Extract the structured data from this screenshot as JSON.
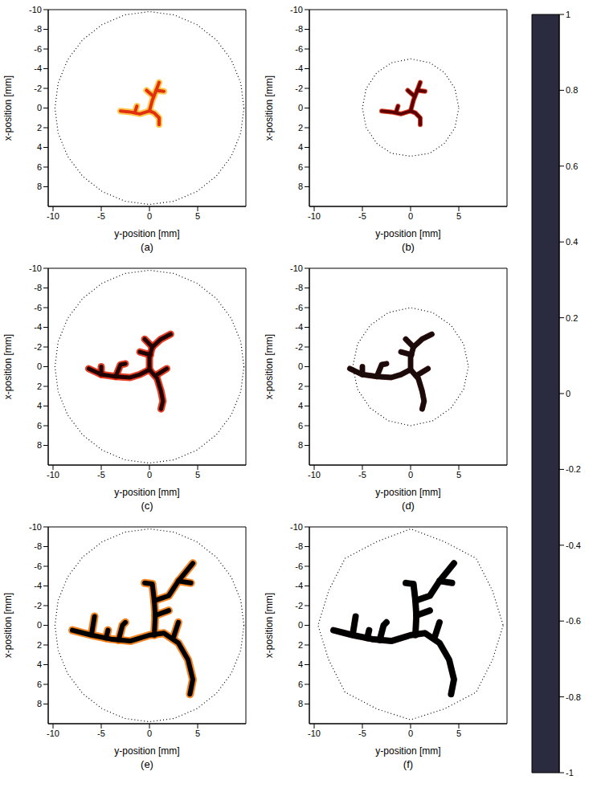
{
  "chart_data": [
    {
      "type": "line",
      "label": "(a)",
      "x_label": "y-position [mm]",
      "y_label": "x-position [mm]",
      "xlim": [
        -10.5,
        10
      ],
      "xticks": [
        -10,
        -5,
        0,
        5
      ],
      "ylim": [
        -10,
        10
      ],
      "yticks": [
        -10,
        -8,
        -6,
        -4,
        -2,
        0,
        2,
        4,
        6,
        8
      ],
      "color": "#e03010",
      "vessels": [
        [
          [
            -3,
            0.3
          ],
          [
            -2,
            0.4
          ],
          [
            -1,
            0.6
          ],
          [
            0,
            0.3
          ],
          [
            0.5,
            0.5
          ],
          [
            1,
            1
          ],
          [
            1,
            1.7
          ]
        ],
        [
          [
            0,
            0.3
          ],
          [
            0.3,
            -0.8
          ],
          [
            0.7,
            -1.8
          ],
          [
            1,
            -2.6
          ]
        ],
        [
          [
            0.4,
            -1.2
          ],
          [
            -0.3,
            -1.8
          ]
        ],
        [
          [
            0.7,
            -1.8
          ],
          [
            1.5,
            -1.7
          ]
        ],
        [
          [
            -1.5,
            0.4
          ],
          [
            -1.3,
            -0.2
          ]
        ]
      ],
      "boundary": [
        [
          9.8,
          0
        ],
        [
          9.47,
          2.54
        ],
        [
          8.49,
          4.9
        ],
        [
          6.93,
          6.93
        ],
        [
          4.9,
          8.49
        ],
        [
          2.54,
          9.47
        ],
        [
          0,
          9.8
        ],
        [
          -2.54,
          9.47
        ],
        [
          -4.9,
          8.49
        ],
        [
          -6.93,
          6.93
        ],
        [
          -8.49,
          4.9
        ],
        [
          -9.47,
          2.54
        ],
        [
          -9.8,
          0
        ],
        [
          -9.47,
          -2.54
        ],
        [
          -8.49,
          -4.9
        ],
        [
          -6.93,
          -6.93
        ],
        [
          -4.9,
          -8.49
        ],
        [
          -2.54,
          -9.47
        ],
        [
          0,
          -9.8
        ],
        [
          2.54,
          -9.47
        ],
        [
          4.9,
          -8.49
        ],
        [
          6.93,
          -6.93
        ],
        [
          8.49,
          -4.9
        ],
        [
          9.47,
          -2.54
        ],
        [
          9.8,
          0
        ]
      ]
    },
    {
      "type": "line",
      "label": "(b)",
      "x_label": "y-position [mm]",
      "y_label": "x-position [mm]",
      "xlim": [
        -10.5,
        10
      ],
      "xticks": [
        -10,
        -5,
        0,
        5
      ],
      "ylim": [
        -10,
        10
      ],
      "yticks": [
        -10,
        -8,
        -6,
        -4,
        -2,
        0,
        2,
        4,
        6,
        8
      ],
      "color": "#5a0000",
      "vessels": [
        [
          [
            -3,
            0.3
          ],
          [
            -2,
            0.4
          ],
          [
            -1,
            0.6
          ],
          [
            0,
            0.3
          ],
          [
            0.5,
            0.5
          ],
          [
            1,
            1
          ],
          [
            1,
            1.7
          ]
        ],
        [
          [
            0,
            0.3
          ],
          [
            0.3,
            -0.8
          ],
          [
            0.7,
            -1.8
          ],
          [
            1,
            -2.6
          ]
        ],
        [
          [
            0.4,
            -1.2
          ],
          [
            -0.3,
            -1.8
          ]
        ],
        [
          [
            0.7,
            -1.8
          ],
          [
            1.5,
            -1.7
          ]
        ],
        [
          [
            -1.5,
            0.4
          ],
          [
            -1.3,
            -0.2
          ]
        ]
      ],
      "boundary": [
        [
          5,
          0
        ],
        [
          4.6,
          2
        ],
        [
          3.5,
          3.6
        ],
        [
          2,
          4.6
        ],
        [
          0,
          4.9
        ],
        [
          -2,
          4.6
        ],
        [
          -3.5,
          3.6
        ],
        [
          -4.6,
          2
        ],
        [
          -5,
          0
        ],
        [
          -4.6,
          -2
        ],
        [
          -3.5,
          -3.6
        ],
        [
          -2,
          -4.6
        ],
        [
          0,
          -5
        ],
        [
          2,
          -4.6
        ],
        [
          3.5,
          -3.6
        ],
        [
          4.6,
          -2
        ],
        [
          5,
          0
        ]
      ]
    },
    {
      "type": "line",
      "label": "(c)",
      "x_label": "y-position [mm]",
      "y_label": "x-position [mm]",
      "xlim": [
        -10.5,
        10
      ],
      "xticks": [
        -10,
        -5,
        0,
        5
      ],
      "ylim": [
        -10,
        10
      ],
      "yticks": [
        -10,
        -8,
        -6,
        -4,
        -2,
        0,
        2,
        4,
        6,
        8
      ],
      "color": "#200000",
      "vessels": [
        [
          [
            -6.3,
            0.2
          ],
          [
            -5,
            0.8
          ],
          [
            -3.5,
            1
          ],
          [
            -2,
            1.1
          ],
          [
            -1,
            0.8
          ],
          [
            0,
            0.3
          ],
          [
            0.8,
            1.2
          ],
          [
            1.2,
            2.5
          ],
          [
            1.4,
            3.5
          ],
          [
            1.2,
            4.3
          ]
        ],
        [
          [
            0,
            0.3
          ],
          [
            0,
            -1
          ],
          [
            0.3,
            -2
          ],
          [
            1.2,
            -2.8
          ],
          [
            2.2,
            -3.3
          ]
        ],
        [
          [
            0.3,
            -2
          ],
          [
            -0.5,
            -2.8
          ]
        ],
        [
          [
            0.1,
            -1.2
          ],
          [
            -1,
            -1.5
          ]
        ],
        [
          [
            0.8,
            0.8
          ],
          [
            1.8,
            0.2
          ]
        ],
        [
          [
            -5,
            0.8
          ],
          [
            -5,
            0
          ]
        ],
        [
          [
            -3.5,
            1
          ],
          [
            -3,
            -0.2
          ],
          [
            -2.5,
            -0.3
          ]
        ]
      ],
      "boundary": [
        [
          9.8,
          0
        ],
        [
          9.47,
          2.54
        ],
        [
          8.49,
          4.9
        ],
        [
          6.93,
          6.93
        ],
        [
          4.9,
          8.49
        ],
        [
          2.54,
          9.47
        ],
        [
          0,
          9.8
        ],
        [
          -2.54,
          9.47
        ],
        [
          -4.9,
          8.49
        ],
        [
          -6.93,
          6.93
        ],
        [
          -8.49,
          4.9
        ],
        [
          -9.47,
          2.54
        ],
        [
          -9.8,
          0
        ],
        [
          -9.47,
          -2.54
        ],
        [
          -8.49,
          -4.9
        ],
        [
          -6.93,
          -6.93
        ],
        [
          -4.9,
          -8.49
        ],
        [
          -2.54,
          -9.47
        ],
        [
          0,
          -9.8
        ],
        [
          2.54,
          -9.47
        ],
        [
          4.9,
          -8.49
        ],
        [
          6.93,
          -6.93
        ],
        [
          8.49,
          -4.9
        ],
        [
          9.47,
          -2.54
        ],
        [
          9.8,
          0
        ]
      ]
    },
    {
      "type": "line",
      "label": "(d)",
      "x_label": "y-position [mm]",
      "y_label": "x-position [mm]",
      "xlim": [
        -10.5,
        10
      ],
      "xticks": [
        -10,
        -5,
        0,
        5
      ],
      "ylim": [
        -10,
        10
      ],
      "yticks": [
        -10,
        -8,
        -6,
        -4,
        -2,
        0,
        2,
        4,
        6,
        8
      ],
      "color": "#1a0a0a",
      "vessels": [
        [
          [
            -6.3,
            0.2
          ],
          [
            -5,
            0.8
          ],
          [
            -3.5,
            1
          ],
          [
            -2,
            1.1
          ],
          [
            -1,
            0.8
          ],
          [
            0,
            0.3
          ],
          [
            0.8,
            1.2
          ],
          [
            1.2,
            2.5
          ],
          [
            1.4,
            3.5
          ],
          [
            1.2,
            4.3
          ]
        ],
        [
          [
            0,
            0.3
          ],
          [
            0,
            -1
          ],
          [
            0.3,
            -2
          ],
          [
            1.2,
            -2.8
          ],
          [
            2.2,
            -3.3
          ]
        ],
        [
          [
            0.3,
            -2
          ],
          [
            -0.5,
            -2.8
          ]
        ],
        [
          [
            0.1,
            -1.2
          ],
          [
            -1,
            -1.5
          ]
        ],
        [
          [
            0.8,
            0.8
          ],
          [
            1.8,
            0.2
          ]
        ],
        [
          [
            -5,
            0.8
          ],
          [
            -5,
            0
          ]
        ],
        [
          [
            -3.5,
            1
          ],
          [
            -3,
            -0.2
          ],
          [
            -2.5,
            -0.3
          ]
        ]
      ],
      "boundary": [
        [
          6,
          0
        ],
        [
          5.5,
          2.3
        ],
        [
          4.2,
          4.2
        ],
        [
          2.3,
          5.5
        ],
        [
          0,
          6
        ],
        [
          -2.3,
          5.5
        ],
        [
          -4.2,
          4.2
        ],
        [
          -5.5,
          2.3
        ],
        [
          -6,
          0
        ],
        [
          -5.5,
          -2.3
        ],
        [
          -4.2,
          -4.2
        ],
        [
          -2.3,
          -5.5
        ],
        [
          0,
          -6
        ],
        [
          2.3,
          -5.5
        ],
        [
          4.2,
          -4.2
        ],
        [
          5.5,
          -2.3
        ],
        [
          6,
          0
        ]
      ]
    },
    {
      "type": "line",
      "label": "(e)",
      "x_label": "y-position [mm]",
      "y_label": "x-position [mm]",
      "xlim": [
        -10.5,
        10
      ],
      "xticks": [
        -10,
        -5,
        0,
        5
      ],
      "ylim": [
        -10,
        10
      ],
      "yticks": [
        -10,
        -8,
        -6,
        -4,
        -2,
        0,
        2,
        4,
        6,
        8
      ],
      "color": "#000000",
      "vessels": [
        [
          [
            -8,
            0.5
          ],
          [
            -6,
            1
          ],
          [
            -4,
            1.4
          ],
          [
            -2,
            1.6
          ],
          [
            0,
            1
          ],
          [
            1.5,
            0.8
          ],
          [
            3,
            1.8
          ],
          [
            4,
            3.5
          ],
          [
            4.5,
            5.5
          ],
          [
            4.2,
            7
          ]
        ],
        [
          [
            0.5,
            1
          ],
          [
            0.6,
            -1
          ],
          [
            0.5,
            -2.5
          ],
          [
            0.3,
            -4.2
          ],
          [
            -0.5,
            -4.3
          ]
        ],
        [
          [
            0.5,
            -2.5
          ],
          [
            2,
            -3
          ],
          [
            3,
            -4.5
          ],
          [
            4.5,
            -6.3
          ]
        ],
        [
          [
            3,
            -4.5
          ],
          [
            4.3,
            -4.3
          ]
        ],
        [
          [
            0.6,
            -1
          ],
          [
            2,
            -1.5
          ]
        ],
        [
          [
            -6,
            0.9
          ],
          [
            -5.7,
            -0.9
          ]
        ],
        [
          [
            -4.5,
            1.3
          ],
          [
            -4.3,
            0.5
          ]
        ],
        [
          [
            -3.2,
            1.5
          ],
          [
            -2.8,
            0
          ],
          [
            -2.5,
            -0.3
          ]
        ],
        [
          [
            2.5,
            1.2
          ],
          [
            3,
            -0.3
          ]
        ]
      ],
      "boundary": [
        [
          9.8,
          0
        ],
        [
          9.47,
          2.54
        ],
        [
          8.49,
          4.9
        ],
        [
          6.93,
          6.93
        ],
        [
          4.9,
          8.49
        ],
        [
          2.54,
          9.47
        ],
        [
          0,
          9.8
        ],
        [
          -2.54,
          9.47
        ],
        [
          -4.9,
          8.49
        ],
        [
          -6.93,
          6.93
        ],
        [
          -8.49,
          4.9
        ],
        [
          -9.47,
          2.54
        ],
        [
          -9.8,
          0
        ],
        [
          -9.47,
          -2.54
        ],
        [
          -8.49,
          -4.9
        ],
        [
          -6.93,
          -6.93
        ],
        [
          -4.9,
          -8.49
        ],
        [
          -2.54,
          -9.47
        ],
        [
          0,
          -9.8
        ],
        [
          2.54,
          -9.47
        ],
        [
          4.9,
          -8.49
        ],
        [
          6.93,
          -6.93
        ],
        [
          8.49,
          -4.9
        ],
        [
          9.47,
          -2.54
        ],
        [
          9.8,
          0
        ]
      ]
    },
    {
      "type": "line",
      "label": "(f)",
      "x_label": "y-position [mm]",
      "y_label": "x-position [mm]",
      "xlim": [
        -10.5,
        10
      ],
      "xticks": [
        -10,
        -5,
        0,
        5
      ],
      "ylim": [
        -10,
        10
      ],
      "yticks": [
        -10,
        -8,
        -6,
        -4,
        -2,
        0,
        2,
        4,
        6,
        8
      ],
      "color": "#000000",
      "vessels": [
        [
          [
            -8,
            0.5
          ],
          [
            -6,
            1
          ],
          [
            -4,
            1.4
          ],
          [
            -2,
            1.6
          ],
          [
            0,
            1
          ],
          [
            1.5,
            0.8
          ],
          [
            3,
            1.8
          ],
          [
            4,
            3.5
          ],
          [
            4.5,
            5.5
          ],
          [
            4.2,
            7
          ]
        ],
        [
          [
            0.5,
            1
          ],
          [
            0.6,
            -1
          ],
          [
            0.5,
            -2.5
          ],
          [
            0.3,
            -4.2
          ],
          [
            -0.5,
            -4.3
          ]
        ],
        [
          [
            0.5,
            -2.5
          ],
          [
            2,
            -3
          ],
          [
            3,
            -4.5
          ],
          [
            4.5,
            -6.3
          ]
        ],
        [
          [
            3,
            -4.5
          ],
          [
            4.3,
            -4.3
          ]
        ],
        [
          [
            0.6,
            -1
          ],
          [
            2,
            -1.5
          ]
        ],
        [
          [
            -6,
            0.9
          ],
          [
            -5.7,
            -0.9
          ]
        ],
        [
          [
            -4.5,
            1.3
          ],
          [
            -4.3,
            0.5
          ]
        ],
        [
          [
            -3.2,
            1.5
          ],
          [
            -2.8,
            0
          ],
          [
            -2.5,
            -0.3
          ]
        ],
        [
          [
            2.5,
            1.2
          ],
          [
            3,
            -0.3
          ]
        ]
      ],
      "boundary": [
        [
          9.6,
          0
        ],
        [
          8.5,
          3.5
        ],
        [
          6.8,
          6.8
        ],
        [
          3.5,
          8.5
        ],
        [
          0,
          9.6
        ],
        [
          -3.5,
          8.5
        ],
        [
          -6.8,
          6.8
        ],
        [
          -8.5,
          3.5
        ],
        [
          -9.6,
          0
        ],
        [
          -8.5,
          -3.5
        ],
        [
          -6.8,
          -6.8
        ],
        [
          -3.5,
          -8.5
        ],
        [
          0,
          -9.8
        ],
        [
          3.5,
          -8.5
        ],
        [
          6.8,
          -6.8
        ],
        [
          8.5,
          -3.5
        ],
        [
          9.6,
          0
        ]
      ]
    }
  ],
  "colorbar": {
    "range": [
      -1,
      1
    ],
    "ticks": [
      -1,
      -0.8,
      -0.6,
      -0.4,
      -0.2,
      0,
      0.2,
      0.4,
      0.6,
      0.8,
      1
    ],
    "colors": [
      "#2b2b3f",
      "#4a4f63",
      "#6f7b86",
      "#9aaab0",
      "#c8d6d6",
      "#ffffff",
      "#ffee44",
      "#ffa500",
      "#ff3010",
      "#a00000",
      "#000000"
    ]
  }
}
